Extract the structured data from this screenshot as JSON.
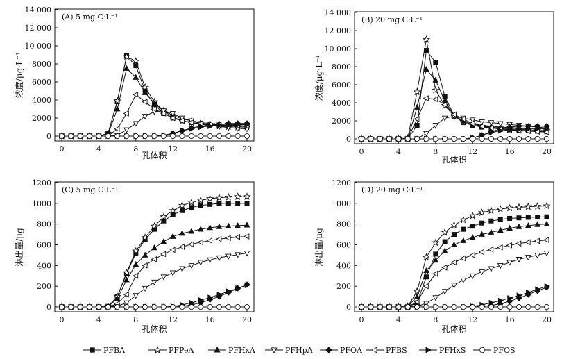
{
  "legend": [
    "PFBA",
    "PFPeA",
    "PFHxA",
    "PFHpA",
    "PFOA",
    "PFBS",
    "PFHxS",
    "PFOS"
  ],
  "chart_data": [
    {
      "id": "A",
      "type": "line",
      "title": "(A) 5 mg C·L⁻¹",
      "xlabel": "孔体积",
      "ylabel": "浓度/μg·L⁻¹",
      "xlim": [
        0,
        20
      ],
      "ylim": [
        0,
        14000
      ],
      "xticks": [
        "0",
        "4",
        "8",
        "12",
        "16",
        "20"
      ],
      "yticks": [
        "0",
        "2000",
        "4000",
        "6000",
        "8000",
        "10 000",
        "12 000",
        "14 000"
      ],
      "x": [
        0,
        1,
        2,
        3,
        4,
        5,
        6,
        7,
        8,
        9,
        10,
        11,
        12,
        13,
        14,
        15,
        16,
        17,
        18,
        19,
        20
      ],
      "series": [
        {
          "name": "PFBA",
          "values": [
            0,
            0,
            0,
            0,
            0,
            300,
            3800,
            8900,
            7800,
            5000,
            3500,
            2500,
            2000,
            1700,
            1500,
            1350,
            1250,
            1200,
            1150,
            1100,
            1100
          ]
        },
        {
          "name": "PFPeA",
          "values": [
            0,
            0,
            0,
            0,
            0,
            300,
            3900,
            8800,
            8300,
            5400,
            3800,
            2800,
            2100,
            1700,
            1500,
            1300,
            1200,
            1100,
            1050,
            1000,
            1000
          ]
        },
        {
          "name": "PFHxA",
          "values": [
            0,
            0,
            0,
            0,
            0,
            200,
            3000,
            7500,
            6500,
            4800,
            3600,
            2800,
            2300,
            1900,
            1700,
            1500,
            1400,
            1350,
            1300,
            1300,
            1250
          ]
        },
        {
          "name": "PFHpA",
          "values": [
            0,
            0,
            0,
            0,
            0,
            0,
            100,
            700,
            1400,
            2200,
            2700,
            2800,
            2500,
            2000,
            1700,
            1400,
            1200,
            1050,
            950,
            850,
            800
          ]
        },
        {
          "name": "PFOA",
          "values": [
            0,
            0,
            0,
            0,
            0,
            0,
            0,
            0,
            0,
            0,
            0,
            0,
            300,
            600,
            900,
            1100,
            1200,
            1300,
            1400,
            1400,
            1400
          ]
        },
        {
          "name": "PFBS",
          "values": [
            0,
            0,
            0,
            0,
            0,
            0,
            800,
            2500,
            4600,
            3800,
            3000,
            2500,
            2000,
            1700,
            1500,
            1400,
            1300,
            1250,
            1200,
            1150,
            1100
          ]
        },
        {
          "name": "PFHxS",
          "values": [
            0,
            0,
            0,
            0,
            0,
            0,
            0,
            0,
            0,
            0,
            0,
            100,
            300,
            600,
            800,
            1000,
            1100,
            1200,
            1200,
            1250,
            1250
          ]
        },
        {
          "name": "PFOS",
          "values": [
            0,
            0,
            0,
            0,
            0,
            0,
            0,
            0,
            0,
            0,
            0,
            0,
            0,
            0,
            0,
            0,
            0,
            0,
            0,
            0,
            0
          ]
        }
      ]
    },
    {
      "id": "B",
      "type": "line",
      "title": "(B) 20 mg C·L⁻¹",
      "xlabel": "孔体积",
      "ylabel": "浓度/μg·L⁻¹",
      "xlim": [
        0,
        20
      ],
      "ylim": [
        0,
        14000
      ],
      "xticks": [
        "0",
        "4",
        "8",
        "12",
        "16",
        "20"
      ],
      "yticks": [
        "0",
        "2000",
        "4000",
        "6000",
        "8000",
        "10 000",
        "12 000",
        "14 000"
      ],
      "x": [
        0,
        1,
        2,
        3,
        4,
        5,
        6,
        7,
        8,
        9,
        10,
        11,
        12,
        13,
        14,
        15,
        16,
        17,
        18,
        19,
        20
      ],
      "series": [
        {
          "name": "PFBA",
          "values": [
            0,
            0,
            0,
            0,
            0,
            0,
            1500,
            9800,
            8500,
            4700,
            2600,
            1800,
            1500,
            1300,
            1200,
            1100,
            1000,
            950,
            900,
            850,
            800
          ]
        },
        {
          "name": "PFPeA",
          "values": [
            0,
            0,
            0,
            0,
            0,
            100,
            5200,
            11000,
            5400,
            3700,
            2500,
            1900,
            1600,
            1400,
            1300,
            1200,
            1100,
            1050,
            1000,
            950,
            900
          ]
        },
        {
          "name": "PFHxA",
          "values": [
            0,
            0,
            0,
            0,
            0,
            0,
            3500,
            7700,
            6500,
            4200,
            2600,
            2000,
            1700,
            1500,
            1400,
            1300,
            1250,
            1200,
            1200,
            1150,
            1100
          ]
        },
        {
          "name": "PFHpA",
          "values": [
            0,
            0,
            0,
            0,
            0,
            0,
            0,
            600,
            1500,
            2300,
            2500,
            2300,
            2100,
            1900,
            1800,
            1700,
            1600,
            1500,
            1400,
            1300,
            1200
          ]
        },
        {
          "name": "PFOA",
          "values": [
            0,
            0,
            0,
            0,
            0,
            0,
            0,
            0,
            0,
            0,
            0,
            0,
            100,
            400,
            800,
            1100,
            1300,
            1400,
            1400,
            1400,
            1400
          ]
        },
        {
          "name": "PFBS",
          "values": [
            0,
            0,
            0,
            0,
            0,
            0,
            2200,
            4500,
            4400,
            3800,
            2700,
            2200,
            1700,
            1400,
            1200,
            1100,
            1000,
            900,
            850,
            800,
            750
          ]
        },
        {
          "name": "PFHxS",
          "values": [
            0,
            0,
            0,
            0,
            0,
            0,
            0,
            0,
            0,
            0,
            0,
            0,
            100,
            400,
            700,
            900,
            1000,
            1100,
            1100,
            1150,
            1150
          ]
        },
        {
          "name": "PFOS",
          "values": [
            0,
            0,
            0,
            0,
            0,
            0,
            0,
            0,
            0,
            0,
            0,
            0,
            0,
            0,
            0,
            0,
            0,
            0,
            0,
            0,
            0
          ]
        }
      ]
    },
    {
      "id": "C",
      "type": "line",
      "title": "(C) 5 mg C·L⁻¹",
      "xlabel": "孔体积",
      "ylabel": "淋出量/μg",
      "xlim": [
        0,
        20
      ],
      "ylim": [
        0,
        1200
      ],
      "xticks": [
        "0",
        "4",
        "8",
        "12",
        "16",
        "20"
      ],
      "yticks": [
        "0",
        "200",
        "400",
        "600",
        "800",
        "1000",
        "1200"
      ],
      "x": [
        0,
        1,
        2,
        3,
        4,
        5,
        6,
        7,
        8,
        9,
        10,
        11,
        12,
        13,
        14,
        15,
        16,
        17,
        18,
        19,
        20
      ],
      "series": [
        {
          "name": "PFBA",
          "values": [
            0,
            0,
            0,
            0,
            0,
            5,
            100,
            320,
            520,
            650,
            750,
            830,
            890,
            930,
            960,
            980,
            990,
            1000,
            1000,
            1000,
            1000
          ]
        },
        {
          "name": "PFPeA",
          "values": [
            0,
            0,
            0,
            0,
            0,
            5,
            100,
            330,
            540,
            670,
            780,
            870,
            930,
            980,
            1010,
            1030,
            1045,
            1055,
            1060,
            1065,
            1065
          ]
        },
        {
          "name": "PFHxA",
          "values": [
            0,
            0,
            0,
            0,
            0,
            4,
            80,
            260,
            410,
            500,
            570,
            630,
            680,
            710,
            730,
            750,
            765,
            775,
            780,
            785,
            790
          ]
        },
        {
          "name": "PFHpA",
          "values": [
            0,
            0,
            0,
            0,
            0,
            0,
            8,
            40,
            110,
            180,
            240,
            290,
            330,
            370,
            400,
            430,
            455,
            475,
            490,
            505,
            520
          ]
        },
        {
          "name": "PFOA",
          "values": [
            0,
            0,
            0,
            0,
            0,
            0,
            0,
            0,
            0,
            0,
            0,
            0,
            0,
            5,
            20,
            40,
            70,
            100,
            140,
            180,
            215
          ]
        },
        {
          "name": "PFBS",
          "values": [
            0,
            0,
            0,
            0,
            0,
            0,
            30,
            120,
            300,
            400,
            460,
            510,
            550,
            580,
            605,
            625,
            640,
            655,
            665,
            675,
            680
          ]
        },
        {
          "name": "PFHxS",
          "values": [
            0,
            0,
            0,
            0,
            0,
            0,
            0,
            0,
            0,
            0,
            0,
            0,
            5,
            20,
            40,
            65,
            90,
            120,
            150,
            180,
            210
          ]
        },
        {
          "name": "PFOS",
          "values": [
            0,
            0,
            0,
            0,
            0,
            0,
            0,
            0,
            0,
            0,
            0,
            0,
            0,
            0,
            0,
            0,
            0,
            0,
            0,
            0,
            0
          ]
        }
      ]
    },
    {
      "id": "D",
      "type": "line",
      "title": "(D) 20 mg C·L⁻¹",
      "xlabel": "孔体积",
      "ylabel": "淋出量/μg",
      "xlim": [
        0,
        20
      ],
      "ylim": [
        0,
        1200
      ],
      "xticks": [
        "0",
        "4",
        "8",
        "12",
        "16",
        "20"
      ],
      "yticks": [
        "0",
        "200",
        "400",
        "600",
        "800",
        "1000",
        "1200"
      ],
      "x": [
        0,
        1,
        2,
        3,
        4,
        5,
        6,
        7,
        8,
        9,
        10,
        11,
        12,
        13,
        14,
        15,
        16,
        17,
        18,
        19,
        20
      ],
      "series": [
        {
          "name": "PFBA",
          "values": [
            0,
            0,
            0,
            0,
            0,
            0,
            40,
            290,
            510,
            630,
            700,
            750,
            780,
            810,
            830,
            845,
            855,
            860,
            865,
            868,
            870
          ]
        },
        {
          "name": "PFPeA",
          "values": [
            0,
            0,
            0,
            0,
            0,
            5,
            150,
            480,
            620,
            720,
            790,
            840,
            880,
            910,
            930,
            945,
            955,
            962,
            968,
            972,
            975
          ]
        },
        {
          "name": "PFHxA",
          "values": [
            0,
            0,
            0,
            0,
            0,
            3,
            100,
            350,
            450,
            540,
            600,
            640,
            670,
            700,
            720,
            740,
            760,
            775,
            785,
            795,
            800
          ]
        },
        {
          "name": "PFHpA",
          "values": [
            0,
            0,
            0,
            0,
            0,
            0,
            5,
            35,
            90,
            150,
            210,
            260,
            300,
            340,
            370,
            400,
            430,
            460,
            480,
            500,
            520
          ]
        },
        {
          "name": "PFOA",
          "values": [
            0,
            0,
            0,
            0,
            0,
            0,
            0,
            0,
            0,
            0,
            0,
            0,
            0,
            5,
            15,
            30,
            55,
            85,
            120,
            155,
            190
          ]
        },
        {
          "name": "PFBS",
          "values": [
            0,
            0,
            0,
            0,
            0,
            0,
            50,
            200,
            320,
            380,
            430,
            470,
            500,
            530,
            555,
            575,
            595,
            612,
            625,
            637,
            647
          ]
        },
        {
          "name": "PFHxS",
          "values": [
            0,
            0,
            0,
            0,
            0,
            0,
            0,
            0,
            0,
            0,
            0,
            0,
            5,
            20,
            40,
            60,
            85,
            110,
            140,
            170,
            200
          ]
        },
        {
          "name": "PFOS",
          "values": [
            0,
            0,
            0,
            0,
            0,
            0,
            0,
            0,
            0,
            0,
            0,
            0,
            0,
            0,
            0,
            0,
            0,
            0,
            0,
            0,
            0
          ]
        }
      ]
    }
  ]
}
